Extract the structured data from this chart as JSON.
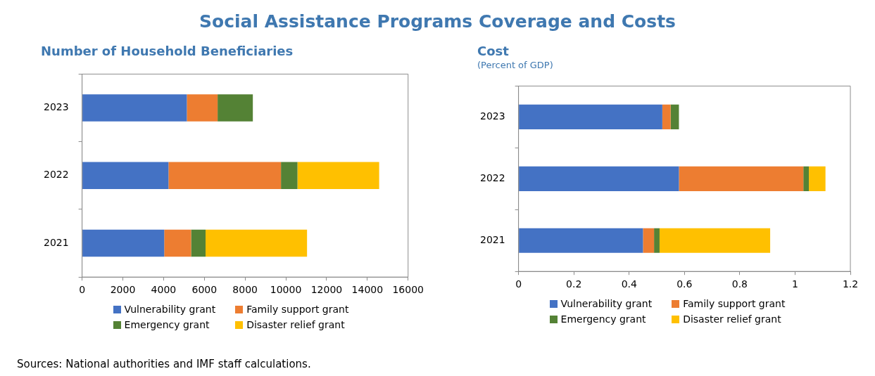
{
  "chart_data": [
    {
      "type": "other",
      "title": "Social Assistance Programs Coverage and Costs",
      "annotations": [
        "Sources: National authorities and IMF staff calculations."
      ]
    },
    {
      "type": "bar",
      "title": "Number of Household Beneficiaries",
      "orientation": "horizontal",
      "stacked": true,
      "categories": [
        "2023",
        "2022",
        "2021"
      ],
      "xlim": [
        0,
        16000
      ],
      "xticks": [
        0,
        2000,
        4000,
        6000,
        8000,
        10000,
        12000,
        14000,
        16000
      ],
      "legend": "bottom",
      "series": [
        {
          "name": "Vulnerability grant",
          "color": "#4472c4",
          "values": [
            5140,
            4240,
            4030
          ]
        },
        {
          "name": "Family support grant",
          "color": "#ed7d31",
          "values": [
            1510,
            5520,
            1320
          ]
        },
        {
          "name": "Emergency grant",
          "color": "#548235",
          "values": [
            1730,
            810,
            710
          ]
        },
        {
          "name": "Disaster relief grant",
          "color": "#ffc000",
          "values": [
            null,
            4010,
            4980
          ]
        }
      ]
    },
    {
      "type": "bar",
      "title": "Cost",
      "subtitle": "(Percent of GDP)",
      "orientation": "horizontal",
      "stacked": true,
      "categories": [
        "2023",
        "2022",
        "2021"
      ],
      "xlim": [
        0,
        1.2
      ],
      "xticks": [
        0,
        0.2,
        0.4,
        0.6,
        0.8,
        1,
        1.2
      ],
      "legend": "bottom",
      "series": [
        {
          "name": "Vulnerability grant",
          "color": "#4472c4",
          "values": [
            0.52,
            0.58,
            0.45
          ]
        },
        {
          "name": "Family support grant",
          "color": "#ed7d31",
          "values": [
            0.03,
            0.45,
            0.04
          ]
        },
        {
          "name": "Emergency grant",
          "color": "#548235",
          "values": [
            0.03,
            0.02,
            0.02
          ]
        },
        {
          "name": "Disaster relief grant",
          "color": "#ffc000",
          "values": [
            null,
            0.06,
            0.4
          ]
        }
      ]
    }
  ]
}
